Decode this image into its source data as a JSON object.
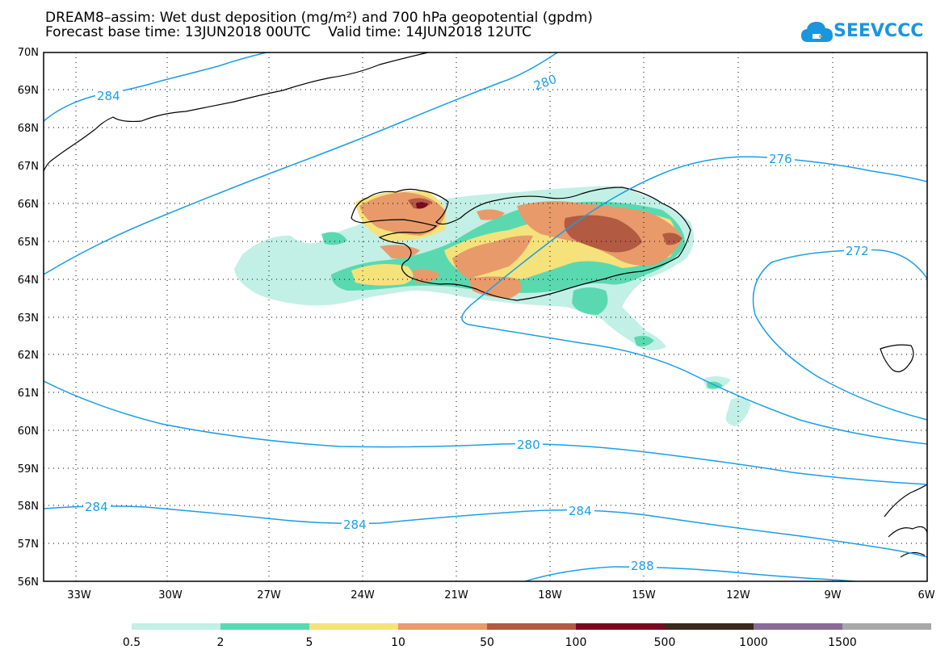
{
  "title": {
    "line1": "DREAM8–assim: Wet dust deposition (mg/m²) and 700 hPa geopotential (gpdm)",
    "line2": "Forecast base time: 13JUN2018 00UTC    Valid time: 14JUN2018 12UTC"
  },
  "logo": {
    "text": "SEEVCCC",
    "icon": "cloud-icon"
  },
  "map": {
    "lat_labels": [
      "70N",
      "69N",
      "68N",
      "67N",
      "66N",
      "65N",
      "64N",
      "63N",
      "62N",
      "61N",
      "60N",
      "59N",
      "58N",
      "57N",
      "56N"
    ],
    "lon_labels": [
      "33W",
      "30W",
      "27W",
      "24W",
      "21W",
      "18W",
      "15W",
      "12W",
      "9W",
      "6W"
    ],
    "lat_range": [
      56,
      70
    ],
    "lon_range": [
      -34.5,
      -6
    ],
    "grid": "dotted",
    "contour_labels": [
      "284",
      "280",
      "276",
      "272",
      "280",
      "284",
      "284",
      "284",
      "288"
    ],
    "contour_color": "#1a9ee6"
  },
  "colorbar": {
    "labels": [
      "0.5",
      "2",
      "5",
      "10",
      "50",
      "100",
      "500",
      "1000",
      "1500"
    ],
    "colors": [
      "#c2f0e6",
      "#5ad9b0",
      "#f5e27a",
      "#e89a6a",
      "#b35a42",
      "#7a0a22",
      "#3a2a1a",
      "#8b6a9a",
      "#a8a8a8"
    ]
  }
}
